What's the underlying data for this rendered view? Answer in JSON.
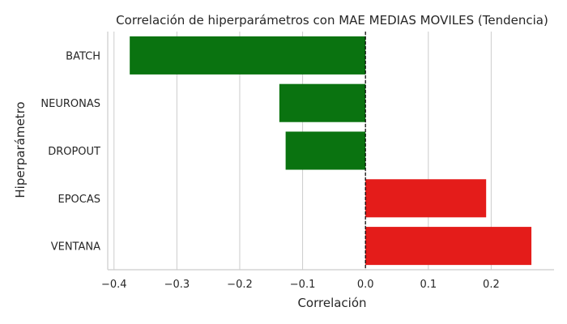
{
  "chart_data": {
    "type": "bar",
    "orientation": "horizontal",
    "title": "Correlación de hiperparámetros con MAE MEDIAS MOVILES (Tendencia)",
    "xlabel": "Correlación",
    "ylabel": "Hiperparámetro",
    "categories": [
      "BATCH",
      "NEURONAS",
      "DROPOUT",
      "EPOCAS",
      "VENTANA"
    ],
    "values": [
      -0.375,
      -0.137,
      -0.127,
      0.192,
      0.264
    ],
    "xlim": [
      -0.41,
      0.3
    ],
    "xticks": [
      -0.4,
      -0.3,
      -0.2,
      -0.1,
      0.0,
      0.1,
      0.2
    ],
    "xtick_labels": [
      "−0.4",
      "−0.3",
      "−0.2",
      "−0.1",
      "0.0",
      "0.1",
      "0.2"
    ],
    "grid": "x",
    "zero_line": "dashed",
    "colors": {
      "negative": "#0a7310",
      "positive": "#e41c1a",
      "grid": "#cccccc",
      "axis": "#cccccc",
      "zero_line": "#000000"
    }
  }
}
